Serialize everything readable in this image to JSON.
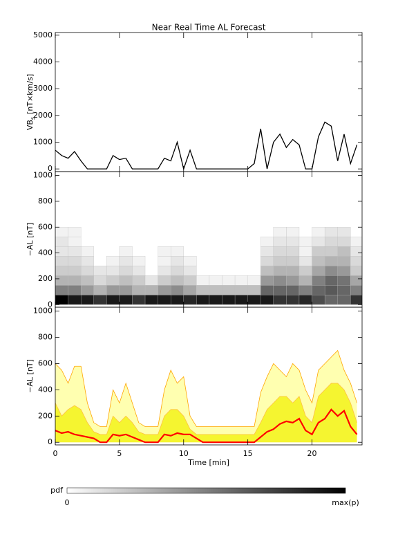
{
  "title": "Near Real Time AL Forecast",
  "chart_data": [
    {
      "type": "line",
      "ylabel": {
        "main": "VB",
        "sub": "s",
        "unit": "[nT×km/s]"
      },
      "x": [
        0,
        0.5,
        1,
        1.5,
        2,
        2.5,
        3,
        3.5,
        4,
        4.5,
        5,
        5.5,
        6,
        6.5,
        7,
        7.5,
        8,
        8.5,
        9,
        9.5,
        10,
        10.5,
        11,
        11.5,
        12,
        12.5,
        13,
        13.5,
        14,
        14.5,
        15,
        15.5,
        16,
        16.5,
        17,
        17.5,
        18,
        18.5,
        19,
        19.5,
        20,
        20.5,
        21,
        21.5,
        22,
        22.5,
        23,
        23.5
      ],
      "values": [
        700,
        500,
        400,
        650,
        300,
        0,
        0,
        0,
        0,
        500,
        350,
        400,
        0,
        0,
        0,
        0,
        0,
        400,
        300,
        1000,
        0,
        700,
        0,
        0,
        0,
        0,
        0,
        0,
        0,
        0,
        0,
        200,
        1500,
        0,
        1000,
        1300,
        800,
        1100,
        900,
        0,
        0,
        1200,
        1750,
        1600,
        300,
        1300,
        200,
        900
      ],
      "color": "#000000",
      "xlim": [
        0,
        23.9
      ],
      "xticks": [
        0,
        5,
        10,
        15,
        20
      ],
      "ylim": [
        -100,
        5100
      ],
      "yticks": [
        0,
        1000,
        2000,
        3000,
        4000,
        5000
      ]
    },
    {
      "type": "heatmap",
      "ylabel": "−AL [nT]",
      "x_edges": [
        0,
        1,
        2,
        3,
        4,
        5,
        6,
        7,
        8,
        9,
        10,
        11,
        12,
        13,
        14,
        15,
        16,
        17,
        18,
        19,
        20,
        21,
        22,
        23,
        24
      ],
      "y_edges": [
        0,
        75,
        150,
        225,
        300,
        375,
        450,
        525,
        600
      ],
      "z": [
        [
          1,
          0.5,
          0.3,
          0.2,
          0.15,
          0.1,
          0.1,
          0.05
        ],
        [
          0.9,
          0.5,
          0.3,
          0.2,
          0.15,
          0.1,
          0.05,
          0.05
        ],
        [
          0.9,
          0.4,
          0.25,
          0.15,
          0.1,
          0.05,
          0,
          0
        ],
        [
          0.8,
          0.3,
          0.15,
          0.1,
          0,
          0,
          0,
          0
        ],
        [
          0.9,
          0.4,
          0.2,
          0.1,
          0.05,
          0,
          0,
          0
        ],
        [
          0.9,
          0.4,
          0.25,
          0.15,
          0.1,
          0.05,
          0,
          0
        ],
        [
          0.8,
          0.3,
          0.2,
          0.1,
          0.05,
          0,
          0,
          0
        ],
        [
          0.9,
          0.3,
          0.1,
          0,
          0,
          0,
          0,
          0
        ],
        [
          0.9,
          0.4,
          0.2,
          0.1,
          0.05,
          0.05,
          0,
          0
        ],
        [
          0.9,
          0.45,
          0.25,
          0.15,
          0.1,
          0.05,
          0,
          0
        ],
        [
          0.85,
          0.35,
          0.2,
          0.1,
          0.05,
          0,
          0,
          0
        ],
        [
          0.9,
          0.25,
          0.05,
          0,
          0,
          0,
          0,
          0
        ],
        [
          0.9,
          0.25,
          0.05,
          0,
          0,
          0,
          0,
          0
        ],
        [
          0.9,
          0.25,
          0.05,
          0,
          0,
          0,
          0,
          0
        ],
        [
          0.9,
          0.25,
          0.05,
          0,
          0,
          0,
          0,
          0
        ],
        [
          0.9,
          0.25,
          0.05,
          0,
          0,
          0,
          0,
          0
        ],
        [
          0.9,
          0.6,
          0.4,
          0.25,
          0.15,
          0.1,
          0.05,
          0
        ],
        [
          0.8,
          0.6,
          0.45,
          0.3,
          0.2,
          0.15,
          0.1,
          0.05
        ],
        [
          0.8,
          0.6,
          0.4,
          0.3,
          0.2,
          0.15,
          0.1,
          0.05
        ],
        [
          0.85,
          0.5,
          0.3,
          0.2,
          0.1,
          0.05,
          0.05,
          0
        ],
        [
          0.7,
          0.6,
          0.5,
          0.35,
          0.25,
          0.2,
          0.1,
          0.05
        ],
        [
          0.6,
          0.65,
          0.6,
          0.45,
          0.3,
          0.2,
          0.15,
          0.1
        ],
        [
          0.6,
          0.6,
          0.55,
          0.4,
          0.3,
          0.25,
          0.15,
          0.1
        ],
        [
          0.8,
          0.5,
          0.35,
          0.2,
          0.15,
          0.1,
          0.05,
          0
        ]
      ],
      "xlim": [
        0,
        23.9
      ],
      "xticks": [
        0,
        5,
        10,
        15,
        20
      ],
      "ylim": [
        -20,
        1030
      ],
      "yticks": [
        0,
        200,
        400,
        600,
        800,
        1000
      ]
    },
    {
      "type": "band",
      "ylabel": "−AL [nT]",
      "xlabel": "Time [min]",
      "x": [
        0,
        0.5,
        1,
        1.5,
        2,
        2.5,
        3,
        3.5,
        4,
        4.5,
        5,
        5.5,
        6,
        6.5,
        7,
        7.5,
        8,
        8.5,
        9,
        9.5,
        10,
        10.5,
        11,
        11.5,
        12,
        12.5,
        13,
        13.5,
        14,
        14.5,
        15,
        15.5,
        16,
        16.5,
        17,
        17.5,
        18,
        18.5,
        19,
        19.5,
        20,
        20.5,
        21,
        21.5,
        22,
        22.5,
        23,
        23.5
      ],
      "areas": [
        {
          "values": [
            600,
            550,
            450,
            580,
            580,
            300,
            150,
            120,
            120,
            400,
            300,
            450,
            300,
            150,
            120,
            120,
            120,
            400,
            550,
            450,
            500,
            200,
            120,
            120,
            120,
            120,
            120,
            120,
            120,
            120,
            120,
            120,
            380,
            500,
            600,
            550,
            500,
            600,
            550,
            400,
            300,
            550,
            600,
            650,
            700,
            550,
            450,
            300
          ],
          "color": "#ffffb0",
          "outline": "#ffa500"
        },
        {
          "values": [
            300,
            200,
            250,
            280,
            250,
            150,
            80,
            60,
            60,
            200,
            150,
            200,
            150,
            80,
            60,
            60,
            60,
            200,
            250,
            250,
            200,
            100,
            60,
            60,
            60,
            60,
            60,
            60,
            60,
            60,
            60,
            60,
            150,
            250,
            300,
            350,
            350,
            300,
            350,
            200,
            150,
            350,
            400,
            450,
            450,
            400,
            300,
            150
          ],
          "color": "#f5f530",
          "outline": "#ffc040"
        }
      ],
      "line": {
        "values": [
          90,
          70,
          80,
          60,
          50,
          40,
          30,
          0,
          0,
          60,
          50,
          60,
          40,
          20,
          0,
          0,
          0,
          60,
          50,
          70,
          60,
          60,
          30,
          0,
          0,
          0,
          0,
          0,
          0,
          0,
          0,
          0,
          40,
          80,
          100,
          140,
          160,
          150,
          180,
          90,
          60,
          150,
          180,
          250,
          200,
          240,
          120,
          60
        ],
        "color": "#ff0000"
      },
      "xlim": [
        0,
        23.9
      ],
      "xticks": [
        0,
        5,
        10,
        15,
        20
      ],
      "ylim": [
        -20,
        1030
      ],
      "yticks": [
        0,
        200,
        400,
        600,
        800,
        1000
      ]
    }
  ],
  "colorbar": {
    "title": "pdf",
    "min_label": "0",
    "max_label": "max(p)",
    "colors": [
      "#ffffff",
      "#000000"
    ]
  }
}
